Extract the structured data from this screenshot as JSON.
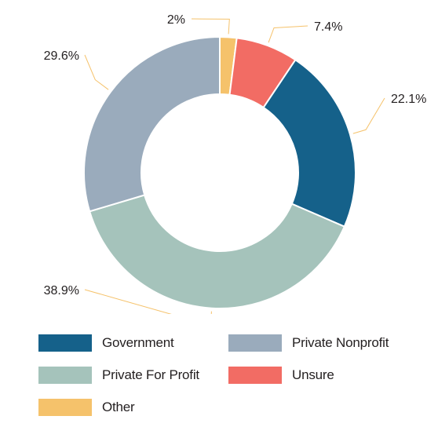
{
  "chart_data": {
    "type": "pie",
    "donut": true,
    "categories": [
      "Other",
      "Unsure",
      "Government",
      "Private For Profit",
      "Private Nonprofit"
    ],
    "values": [
      2,
      7.4,
      22.1,
      38.9,
      29.6
    ],
    "labels": [
      "2%",
      "7.4%",
      "22.1%",
      "38.9%",
      "29.6%"
    ],
    "colors": [
      "#f5c26b",
      "#f26c64",
      "#15618a",
      "#a5c3bb",
      "#9aabbc"
    ],
    "legend_position": "bottom"
  },
  "legend": [
    {
      "label": "Government",
      "color": "#15618a"
    },
    {
      "label": "Private Nonprofit",
      "color": "#9aabbc"
    },
    {
      "label": "Private For Profit",
      "color": "#a5c3bb"
    },
    {
      "label": "Unsure",
      "color": "#f26c64"
    },
    {
      "label": "Other",
      "color": "#f5c26b"
    }
  ]
}
